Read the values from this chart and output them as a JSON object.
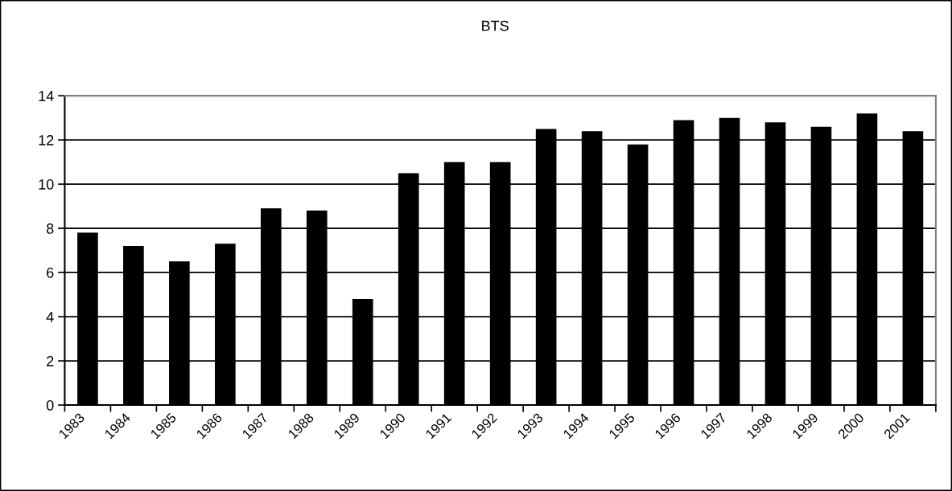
{
  "chart_data": {
    "type": "bar",
    "title": "BTS",
    "categories": [
      "1983",
      "1984",
      "1985",
      "1986",
      "1987",
      "1988",
      "1989",
      "1990",
      "1991",
      "1992",
      "1993",
      "1994",
      "1995",
      "1996",
      "1997",
      "1998",
      "1999",
      "2000",
      "2001"
    ],
    "values": [
      7.8,
      7.2,
      6.5,
      7.3,
      8.9,
      8.8,
      4.8,
      10.5,
      11.0,
      11.0,
      12.5,
      12.4,
      11.8,
      12.9,
      13.0,
      12.8,
      12.6,
      13.2,
      12.4
    ],
    "color": "#000000",
    "ylim": [
      0,
      14
    ],
    "yticks": [
      0,
      2,
      4,
      6,
      8,
      10,
      12,
      14
    ],
    "grid": "y",
    "legend": false
  }
}
